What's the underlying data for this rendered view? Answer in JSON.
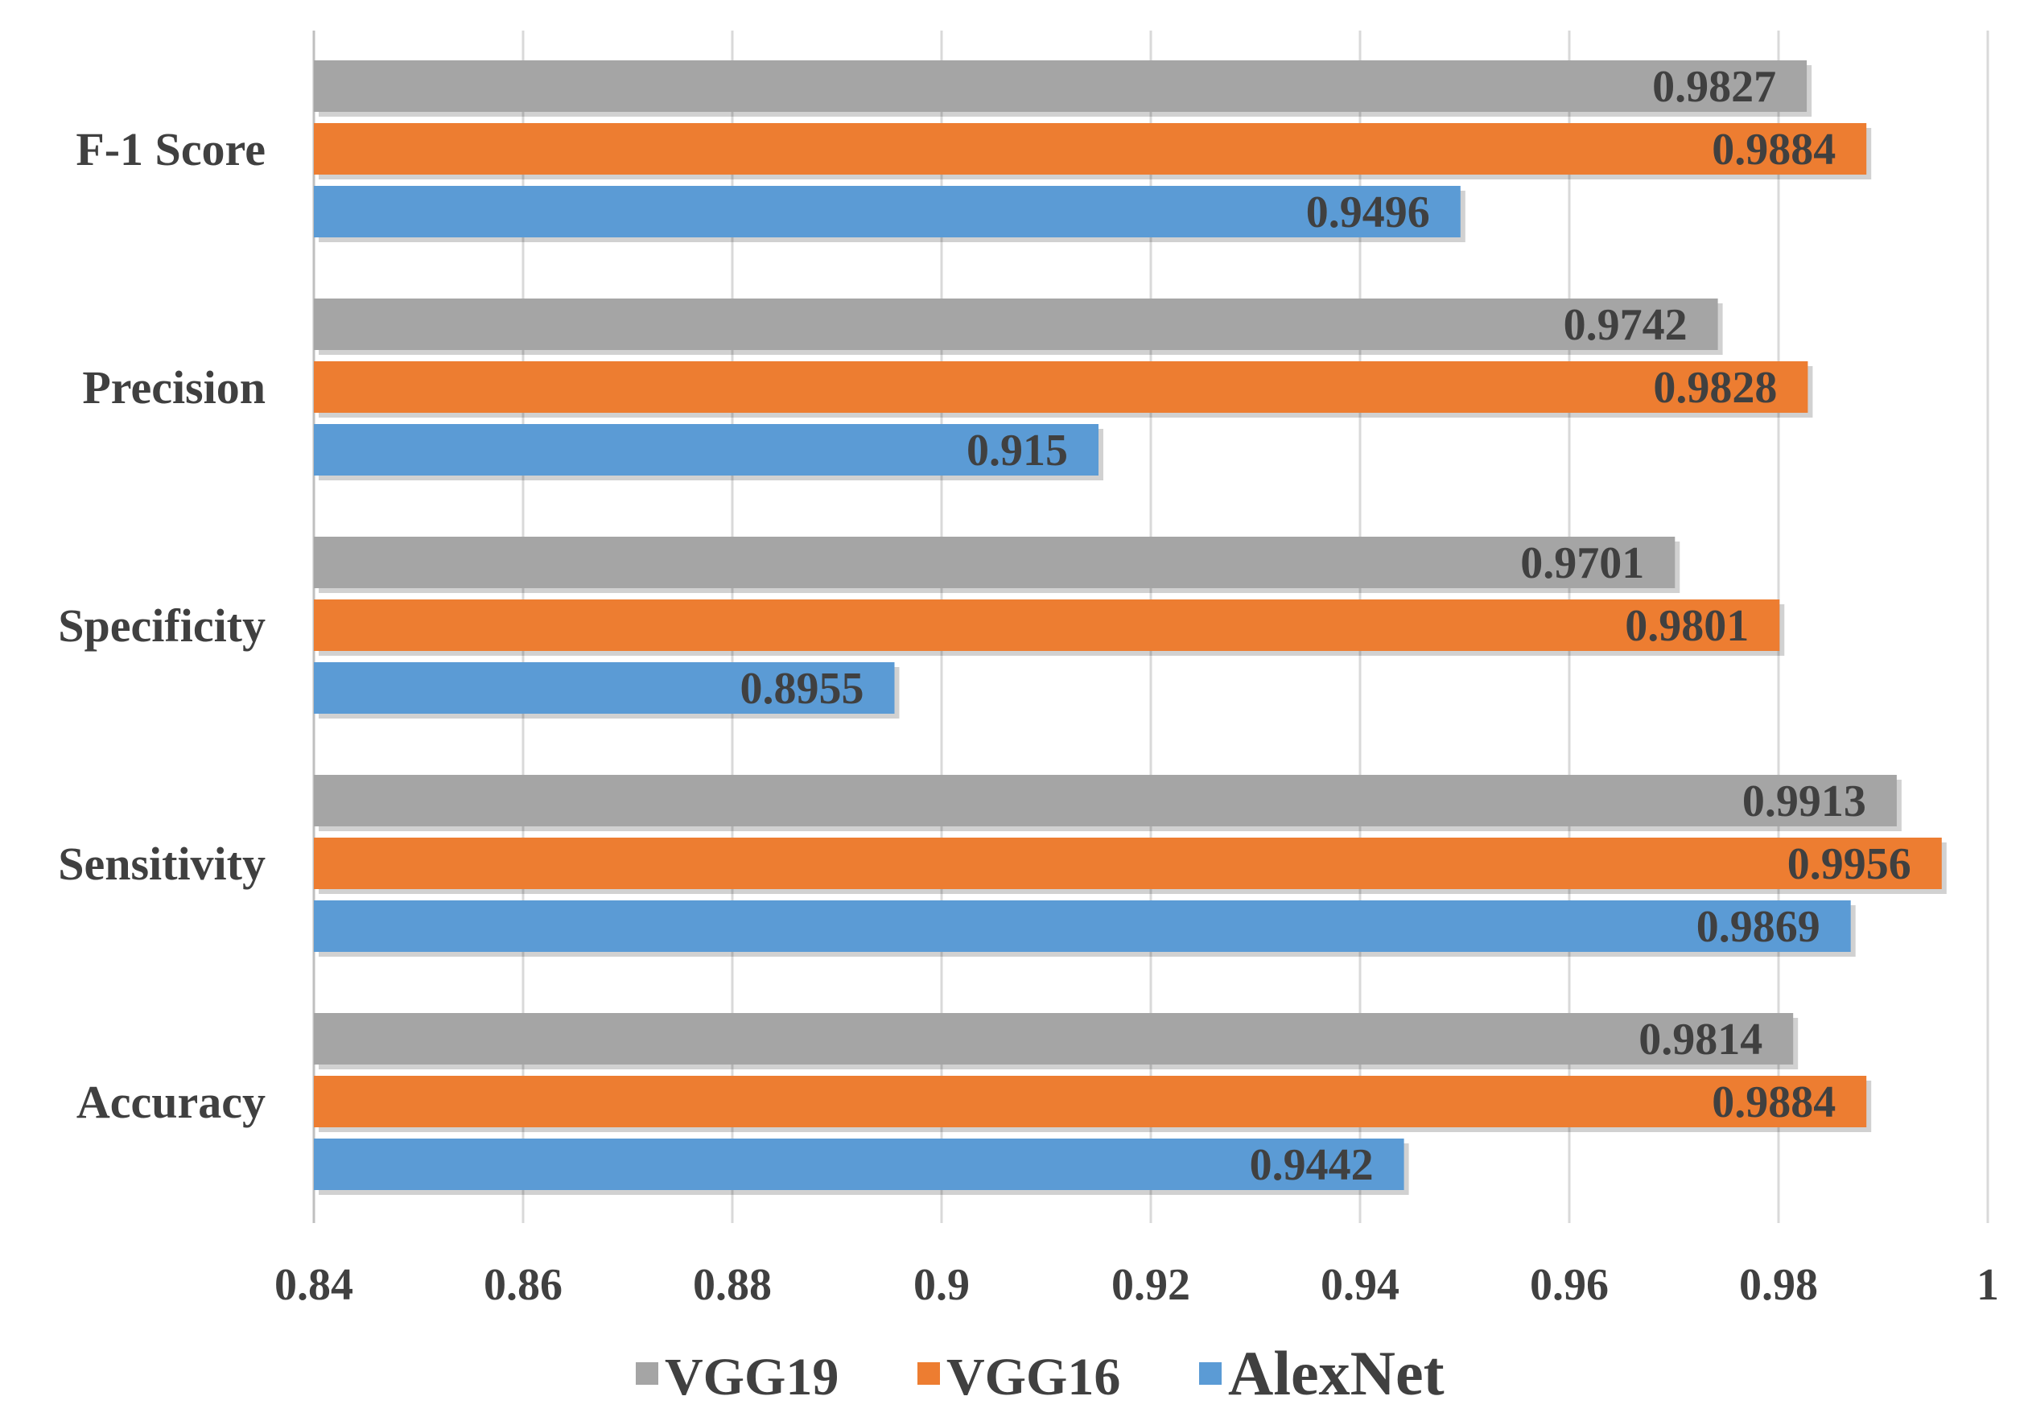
{
  "chart_data": {
    "type": "bar",
    "orientation": "horizontal",
    "title": "",
    "xlabel": "",
    "ylabel": "",
    "xlim": [
      0.84,
      1
    ],
    "x_ticks": [
      0.84,
      0.86,
      0.88,
      0.9,
      0.92,
      0.94,
      0.96,
      0.98,
      1
    ],
    "x_tick_labels": [
      "0.84",
      "0.86",
      "0.88",
      "0.9",
      "0.92",
      "0.94",
      "0.96",
      "0.98",
      "1"
    ],
    "grid": true,
    "legend_position": "bottom",
    "categories": [
      "F-1 Score",
      "Precision",
      "Specificity",
      "Sensitivity",
      "Accuracy"
    ],
    "series": [
      {
        "name": "VGG19",
        "color": "#a5a5a5",
        "values": [
          0.9827,
          0.9742,
          0.9701,
          0.9913,
          0.9814
        ],
        "labels": [
          "0.9827",
          "0.9742",
          "0.9701",
          "0.9913",
          "0.9814"
        ]
      },
      {
        "name": "VGG16",
        "color": "#ed7d31",
        "values": [
          0.9884,
          0.9828,
          0.9801,
          0.9956,
          0.9884
        ],
        "labels": [
          "0.9884",
          "0.9828",
          "0.9801",
          "0.9956",
          "0.9884"
        ]
      },
      {
        "name": "AlexNet",
        "color": "#5b9bd5",
        "values": [
          0.9496,
          0.915,
          0.8955,
          0.9869,
          0.9442
        ],
        "labels": [
          "0.9496",
          "0.915",
          "0.8955",
          "0.9869",
          "0.9442"
        ]
      }
    ]
  }
}
